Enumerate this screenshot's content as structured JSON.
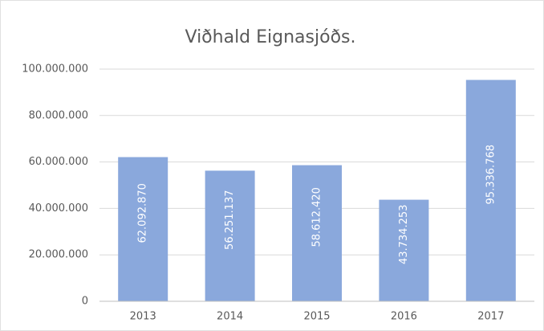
{
  "chart_data": {
    "type": "bar",
    "title": "Viðhald Eignasjóðs.",
    "categories": [
      "2013",
      "2014",
      "2015",
      "2016",
      "2017"
    ],
    "values": [
      62092870,
      56251137,
      58612420,
      43734253,
      95336768
    ],
    "value_labels": [
      "62.092.870",
      "56.251.137",
      "58.612.420",
      "43.734.253",
      "95.336.768"
    ],
    "color": "#8aa8dc",
    "ylim": [
      0,
      100000000
    ],
    "yticks": [
      0,
      {
        "value": 20000000,
        "label": "20.000.000"
      },
      {
        "value": 40000000,
        "label": "40.000.000"
      },
      {
        "value": 60000000,
        "label": "60.000.000"
      },
      {
        "value": 80000000,
        "label": "80.000.000"
      },
      {
        "value": 100000000,
        "label": "100.000.000"
      }
    ],
    "grid": true
  }
}
